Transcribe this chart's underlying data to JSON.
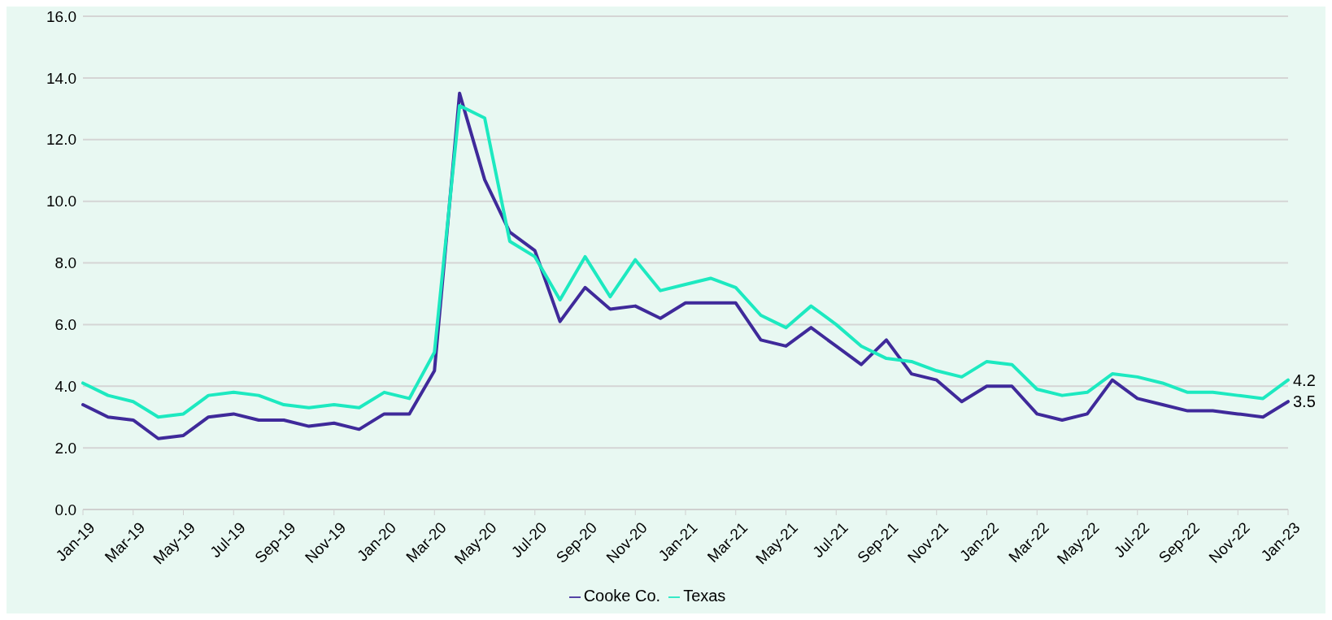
{
  "chart_data": {
    "type": "line",
    "categories": [
      "Jan-19",
      null,
      "Mar-19",
      null,
      "May-19",
      null,
      "Jul-19",
      null,
      "Sep-19",
      null,
      "Nov-19",
      null,
      "Jan-20",
      null,
      "Mar-20",
      null,
      "May-20",
      null,
      "Jul-20",
      null,
      "Sep-20",
      null,
      "Nov-20",
      null,
      "Jan-21",
      null,
      "Mar-21",
      null,
      "May-21",
      null,
      "Jul-21",
      null,
      "Sep-21",
      null,
      "Nov-21",
      null,
      "Jan-22",
      null,
      "Mar-22",
      null,
      "May-22",
      null,
      "Jul-22",
      null,
      "Sep-22",
      null,
      "Nov-22",
      null,
      "Jan-23"
    ],
    "series": [
      {
        "name": "Cooke Co.",
        "color": "#3f2a9a",
        "values": [
          3.4,
          3.0,
          2.9,
          2.3,
          2.4,
          3.0,
          3.1,
          2.9,
          2.9,
          2.7,
          2.8,
          2.6,
          3.1,
          3.1,
          4.5,
          13.5,
          10.7,
          9.0,
          8.4,
          6.1,
          7.2,
          6.5,
          6.6,
          6.2,
          6.7,
          6.7,
          6.7,
          5.5,
          5.3,
          5.9,
          5.3,
          4.7,
          5.5,
          4.4,
          4.2,
          3.5,
          4.0,
          4.0,
          3.1,
          2.9,
          3.1,
          4.2,
          3.6,
          3.4,
          3.2,
          3.2,
          3.1,
          3.0,
          3.5
        ],
        "value_labels": [
          null,
          null,
          null,
          null,
          null,
          null,
          null,
          null,
          null,
          null,
          null,
          null,
          null,
          null,
          null,
          null,
          null,
          null,
          null,
          null,
          null,
          null,
          null,
          null,
          null,
          null,
          null,
          null,
          null,
          null,
          null,
          null,
          null,
          null,
          null,
          null,
          null,
          null,
          null,
          null,
          null,
          null,
          null,
          null,
          null,
          null,
          null,
          null,
          "3.5"
        ]
      },
      {
        "name": "Texas",
        "color": "#1de9c0",
        "values": [
          4.1,
          3.7,
          3.5,
          3.0,
          3.1,
          3.7,
          3.8,
          3.7,
          3.4,
          3.3,
          3.4,
          3.3,
          3.8,
          3.6,
          5.1,
          13.1,
          12.7,
          8.7,
          8.2,
          6.8,
          8.2,
          6.9,
          8.1,
          7.1,
          7.3,
          7.5,
          7.2,
          6.3,
          5.9,
          6.6,
          6.0,
          5.3,
          4.9,
          4.8,
          4.5,
          4.3,
          4.8,
          4.7,
          3.9,
          3.7,
          3.8,
          4.4,
          4.3,
          4.1,
          3.8,
          3.8,
          3.7,
          3.6,
          4.2
        ],
        "value_labels": [
          null,
          null,
          null,
          null,
          null,
          null,
          null,
          null,
          null,
          null,
          null,
          null,
          null,
          null,
          null,
          null,
          null,
          null,
          null,
          null,
          null,
          null,
          null,
          null,
          null,
          null,
          null,
          null,
          null,
          null,
          null,
          null,
          null,
          null,
          null,
          null,
          null,
          null,
          null,
          null,
          null,
          null,
          null,
          null,
          null,
          null,
          null,
          null,
          "4.2"
        ]
      }
    ],
    "ylim": [
      0,
      16
    ],
    "yticks": [
      {
        "value": 0,
        "label": "0.0"
      },
      {
        "value": 2,
        "label": "2.0"
      },
      {
        "value": 4,
        "label": "4.0"
      },
      {
        "value": 6,
        "label": "6.0"
      },
      {
        "value": 8,
        "label": "8.0"
      },
      {
        "value": 10,
        "label": "10.0"
      },
      {
        "value": 12,
        "label": "12.0"
      },
      {
        "value": 14,
        "label": "14.0"
      },
      {
        "value": 16,
        "label": "16.0"
      }
    ],
    "grid": "y",
    "legend": "bottom",
    "marker": "none",
    "line_style": "solid"
  }
}
